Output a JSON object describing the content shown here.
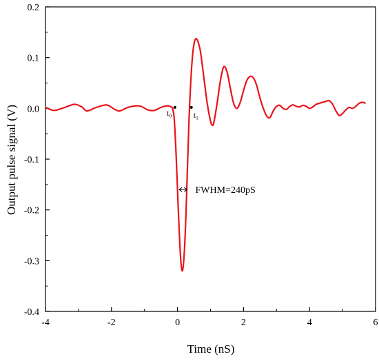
{
  "chart_data": {
    "type": "line",
    "title": "",
    "xlabel": "Time (nS)",
    "ylabel": "Output pulse signal (V)",
    "xlim": [
      -4,
      6
    ],
    "ylim": [
      -0.4,
      0.2
    ],
    "grid": false,
    "x_ticks": [
      "-4",
      "-2",
      "0",
      "2",
      "4",
      "6"
    ],
    "y_ticks": [
      "0.2",
      "0.1",
      "0.0",
      "-0.1",
      "-0.2",
      "-0.3",
      "-0.4"
    ],
    "series": [
      {
        "name": "",
        "color": "#e8141b",
        "x": [
          -4.0,
          -3.75,
          -3.5,
          -3.25,
          -3.1,
          -2.9,
          -2.75,
          -2.5,
          -2.25,
          -2.1,
          -1.9,
          -1.75,
          -1.5,
          -1.25,
          -1.1,
          -0.9,
          -0.7,
          -0.5,
          -0.3,
          -0.2,
          -0.15,
          -0.1,
          -0.05,
          0.0,
          0.05,
          0.1,
          0.15,
          0.2,
          0.25,
          0.3,
          0.35,
          0.4,
          0.45,
          0.5,
          0.55,
          0.6,
          0.65,
          0.7,
          0.8,
          0.9,
          1.0,
          1.05,
          1.1,
          1.2,
          1.3,
          1.4,
          1.5,
          1.6,
          1.7,
          1.8,
          1.9,
          2.0,
          2.1,
          2.2,
          2.3,
          2.4,
          2.5,
          2.6,
          2.7,
          2.8,
          2.9,
          3.0,
          3.1,
          3.2,
          3.3,
          3.4,
          3.5,
          3.6,
          3.7,
          3.8,
          3.9,
          4.0,
          4.1,
          4.2,
          4.3,
          4.4,
          4.5,
          4.6,
          4.7,
          4.8,
          4.9,
          5.0,
          5.1,
          5.2,
          5.3,
          5.4,
          5.5,
          5.6,
          5.7
        ],
        "y": [
          0.002,
          -0.004,
          0.0,
          0.006,
          0.008,
          0.003,
          -0.005,
          0.001,
          0.006,
          0.006,
          -0.002,
          -0.005,
          0.002,
          0.005,
          0.004,
          -0.003,
          -0.004,
          0.002,
          0.005,
          0.003,
          0.0,
          -0.02,
          -0.08,
          -0.16,
          -0.24,
          -0.3,
          -0.32,
          -0.29,
          -0.22,
          -0.12,
          -0.02,
          0.05,
          0.1,
          0.127,
          0.137,
          0.135,
          0.125,
          0.11,
          0.06,
          0.01,
          -0.025,
          -0.033,
          -0.028,
          0.01,
          0.055,
          0.082,
          0.072,
          0.04,
          0.01,
          0.0,
          0.012,
          0.035,
          0.055,
          0.063,
          0.06,
          0.045,
          0.02,
          0.0,
          -0.015,
          -0.018,
          -0.005,
          0.004,
          0.006,
          0.0,
          -0.002,
          0.004,
          0.007,
          0.004,
          0.003,
          0.006,
          0.004,
          0.0,
          0.003,
          0.008,
          0.01,
          0.012,
          0.014,
          0.015,
          0.008,
          -0.005,
          -0.014,
          -0.01,
          -0.003,
          0.002,
          0.0,
          0.004,
          0.01,
          0.012,
          0.01
        ]
      }
    ],
    "annotations": {
      "t0": {
        "label": "t₀",
        "x": -0.08,
        "y": 0.002
      },
      "t1": {
        "label": "t₁",
        "x": 0.42,
        "y": 0.002
      },
      "fwhm": {
        "label": "FWHM=240pS",
        "x_start": 0.05,
        "x_end": 0.29,
        "y": -0.16
      }
    }
  }
}
